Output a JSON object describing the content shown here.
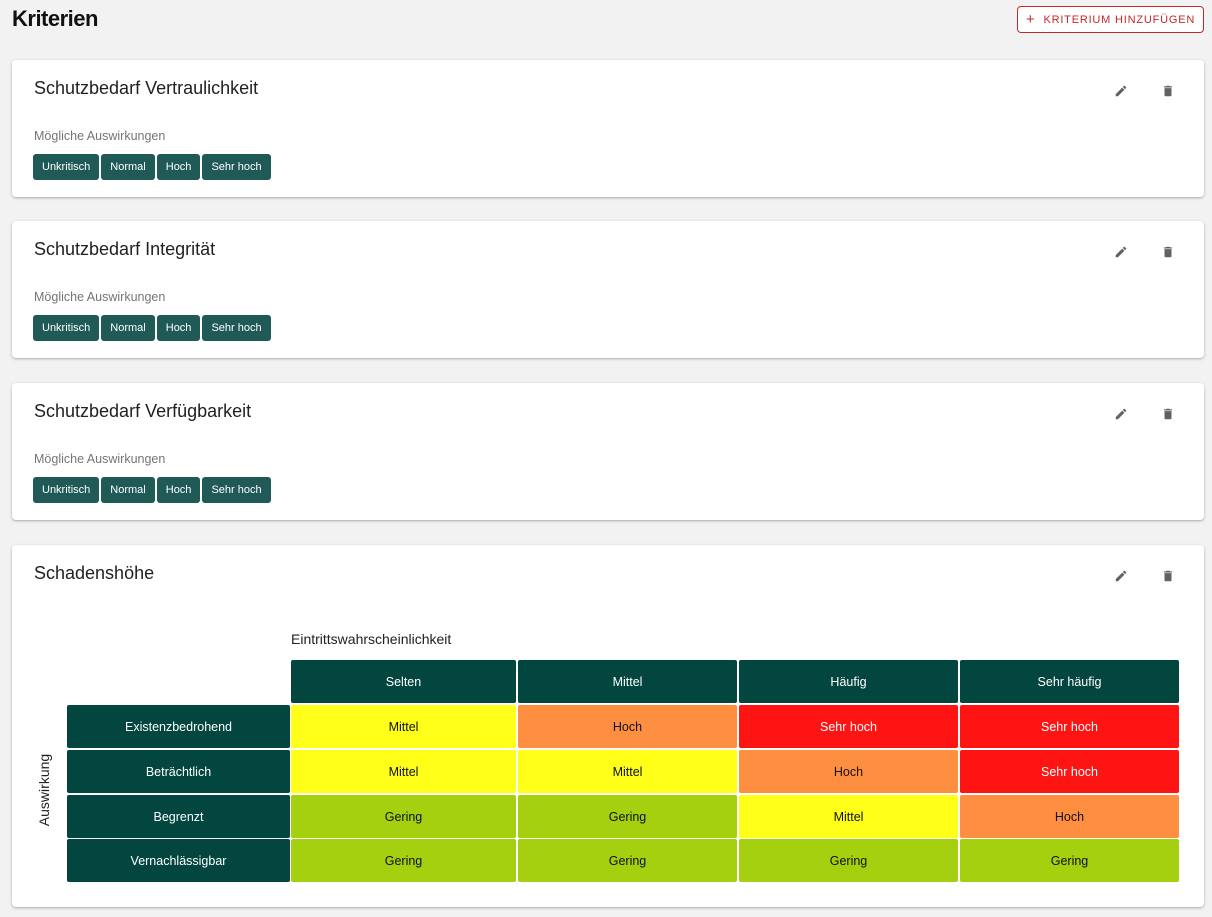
{
  "page": {
    "title": "Kriterien",
    "add_button": {
      "label": "KRITERIUM HINZUFÜGEN",
      "icon": "plus-icon",
      "color": "#c62828"
    }
  },
  "criteria": [
    {
      "title": "Schutzbedarf Vertraulichkeit",
      "impacts_label": "Mögliche Auswirkungen",
      "impacts": [
        "Unkritisch",
        "Normal",
        "Hoch",
        "Sehr hoch"
      ]
    },
    {
      "title": "Schutzbedarf Integrität",
      "impacts_label": "Mögliche Auswirkungen",
      "impacts": [
        "Unkritisch",
        "Normal",
        "Hoch",
        "Sehr hoch"
      ]
    },
    {
      "title": "Schutzbedarf Verfügbarkeit",
      "impacts_label": "Mögliche Auswirkungen",
      "impacts": [
        "Unkritisch",
        "Normal",
        "Hoch",
        "Sehr hoch"
      ]
    }
  ],
  "damage": {
    "title": "Schadenshöhe",
    "matrix_title": "Eintrittswahrscheinlichkeit",
    "row_axis_label": "Auswirkung",
    "columns": [
      "Selten",
      "Mittel",
      "Häufig",
      "Sehr häufig"
    ],
    "rows": [
      "Existenzbedrohend",
      "Beträchtlich",
      "Begrenzt",
      "Vernachlässigbar"
    ],
    "cells": [
      [
        "Mittel",
        "Hoch",
        "Sehr hoch",
        "Sehr hoch"
      ],
      [
        "Mittel",
        "Mittel",
        "Hoch",
        "Sehr hoch"
      ],
      [
        "Gering",
        "Gering",
        "Mittel",
        "Hoch"
      ],
      [
        "Gering",
        "Gering",
        "Gering",
        "Gering"
      ]
    ],
    "level_colors": {
      "Gering": {
        "bg": "#a4d00f",
        "fg": "#111111"
      },
      "Mittel": {
        "bg": "#ffff1a",
        "fg": "#111111"
      },
      "Hoch": {
        "bg": "#ff8f40",
        "fg": "#111111"
      },
      "Sehr hoch": {
        "bg": "#ff1414",
        "fg": "#ffffff"
      }
    },
    "header_color": "#03463f"
  },
  "chip_color": "#1f5a57",
  "icons": {
    "edit": "pencil-icon",
    "delete": "trash-icon"
  }
}
